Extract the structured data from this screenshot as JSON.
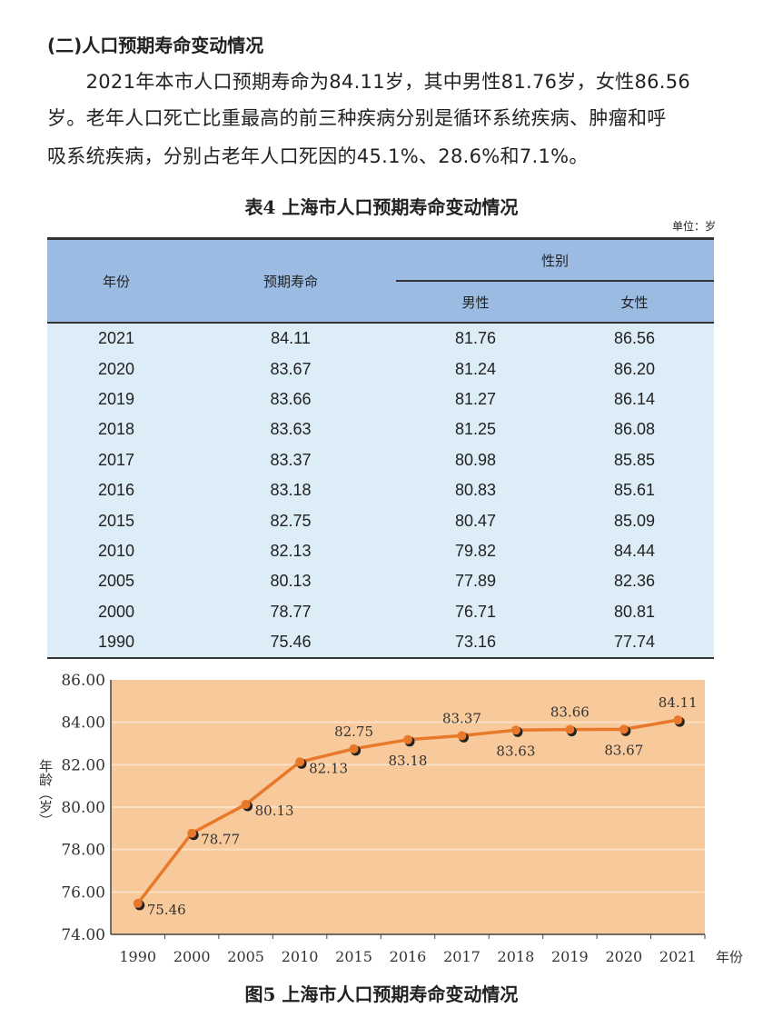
{
  "section_title": "(二)人口预期寿命变动情况",
  "paragraph_lines": [
    "　　2021年本市人口预期寿命为84.11岁，其中男性81.76岁，女性86.56",
    "岁。老年人口死亡比重最高的前三种疾病分别是循环系统疾病、肿瘤和呼",
    "吸系统疾病，分别占老年人口死因的45.1%、28.6%和7.1%。"
  ],
  "table": {
    "title": "表4  上海市人口预期寿命变动情况",
    "unit": "单位：岁",
    "headers": {
      "year": "年份",
      "life": "预期寿命",
      "gender": "性别",
      "male": "男性",
      "female": "女性"
    },
    "rows": [
      [
        "2021",
        "84.11",
        "81.76",
        "86.56"
      ],
      [
        "2020",
        "83.67",
        "81.24",
        "86.20"
      ],
      [
        "2019",
        "83.66",
        "81.27",
        "86.14"
      ],
      [
        "2018",
        "83.63",
        "81.25",
        "86.08"
      ],
      [
        "2017",
        "83.37",
        "80.98",
        "85.85"
      ],
      [
        "2016",
        "83.18",
        "80.83",
        "85.61"
      ],
      [
        "2015",
        "82.75",
        "80.47",
        "85.09"
      ],
      [
        "2010",
        "82.13",
        "79.82",
        "84.44"
      ],
      [
        "2005",
        "80.13",
        "77.89",
        "82.36"
      ],
      [
        "2000",
        "78.77",
        "76.71",
        "80.81"
      ],
      [
        "1990",
        "75.46",
        "73.16",
        "77.74"
      ]
    ],
    "colors": {
      "header": "#9bbbe3",
      "body": "#dcedf8"
    }
  },
  "chart_data": {
    "type": "line",
    "title": "图5  上海市人口预期寿命变动情况",
    "xlabel": "年份",
    "ylabel": "年龄（岁）",
    "categories": [
      "1990",
      "2000",
      "2005",
      "2010",
      "2015",
      "2016",
      "2017",
      "2018",
      "2019",
      "2020",
      "2021"
    ],
    "values": [
      75.46,
      78.77,
      80.13,
      82.13,
      82.75,
      83.18,
      83.37,
      83.63,
      83.66,
      83.67,
      84.11
    ],
    "data_labels": [
      "75.46",
      "78.77",
      "80.13",
      "82.13",
      "82.75",
      "83.18",
      "83.37",
      "83.63",
      "83.66",
      "83.67",
      "84.11"
    ],
    "ylim": [
      74,
      86
    ],
    "yticks": [
      "74.00",
      "76.00",
      "78.00",
      "80.00",
      "82.00",
      "84.00",
      "86.00"
    ],
    "grid": true,
    "colors": {
      "line": "#e8782a",
      "background": "#f8c99b",
      "grid": "#fbe0c4"
    }
  }
}
